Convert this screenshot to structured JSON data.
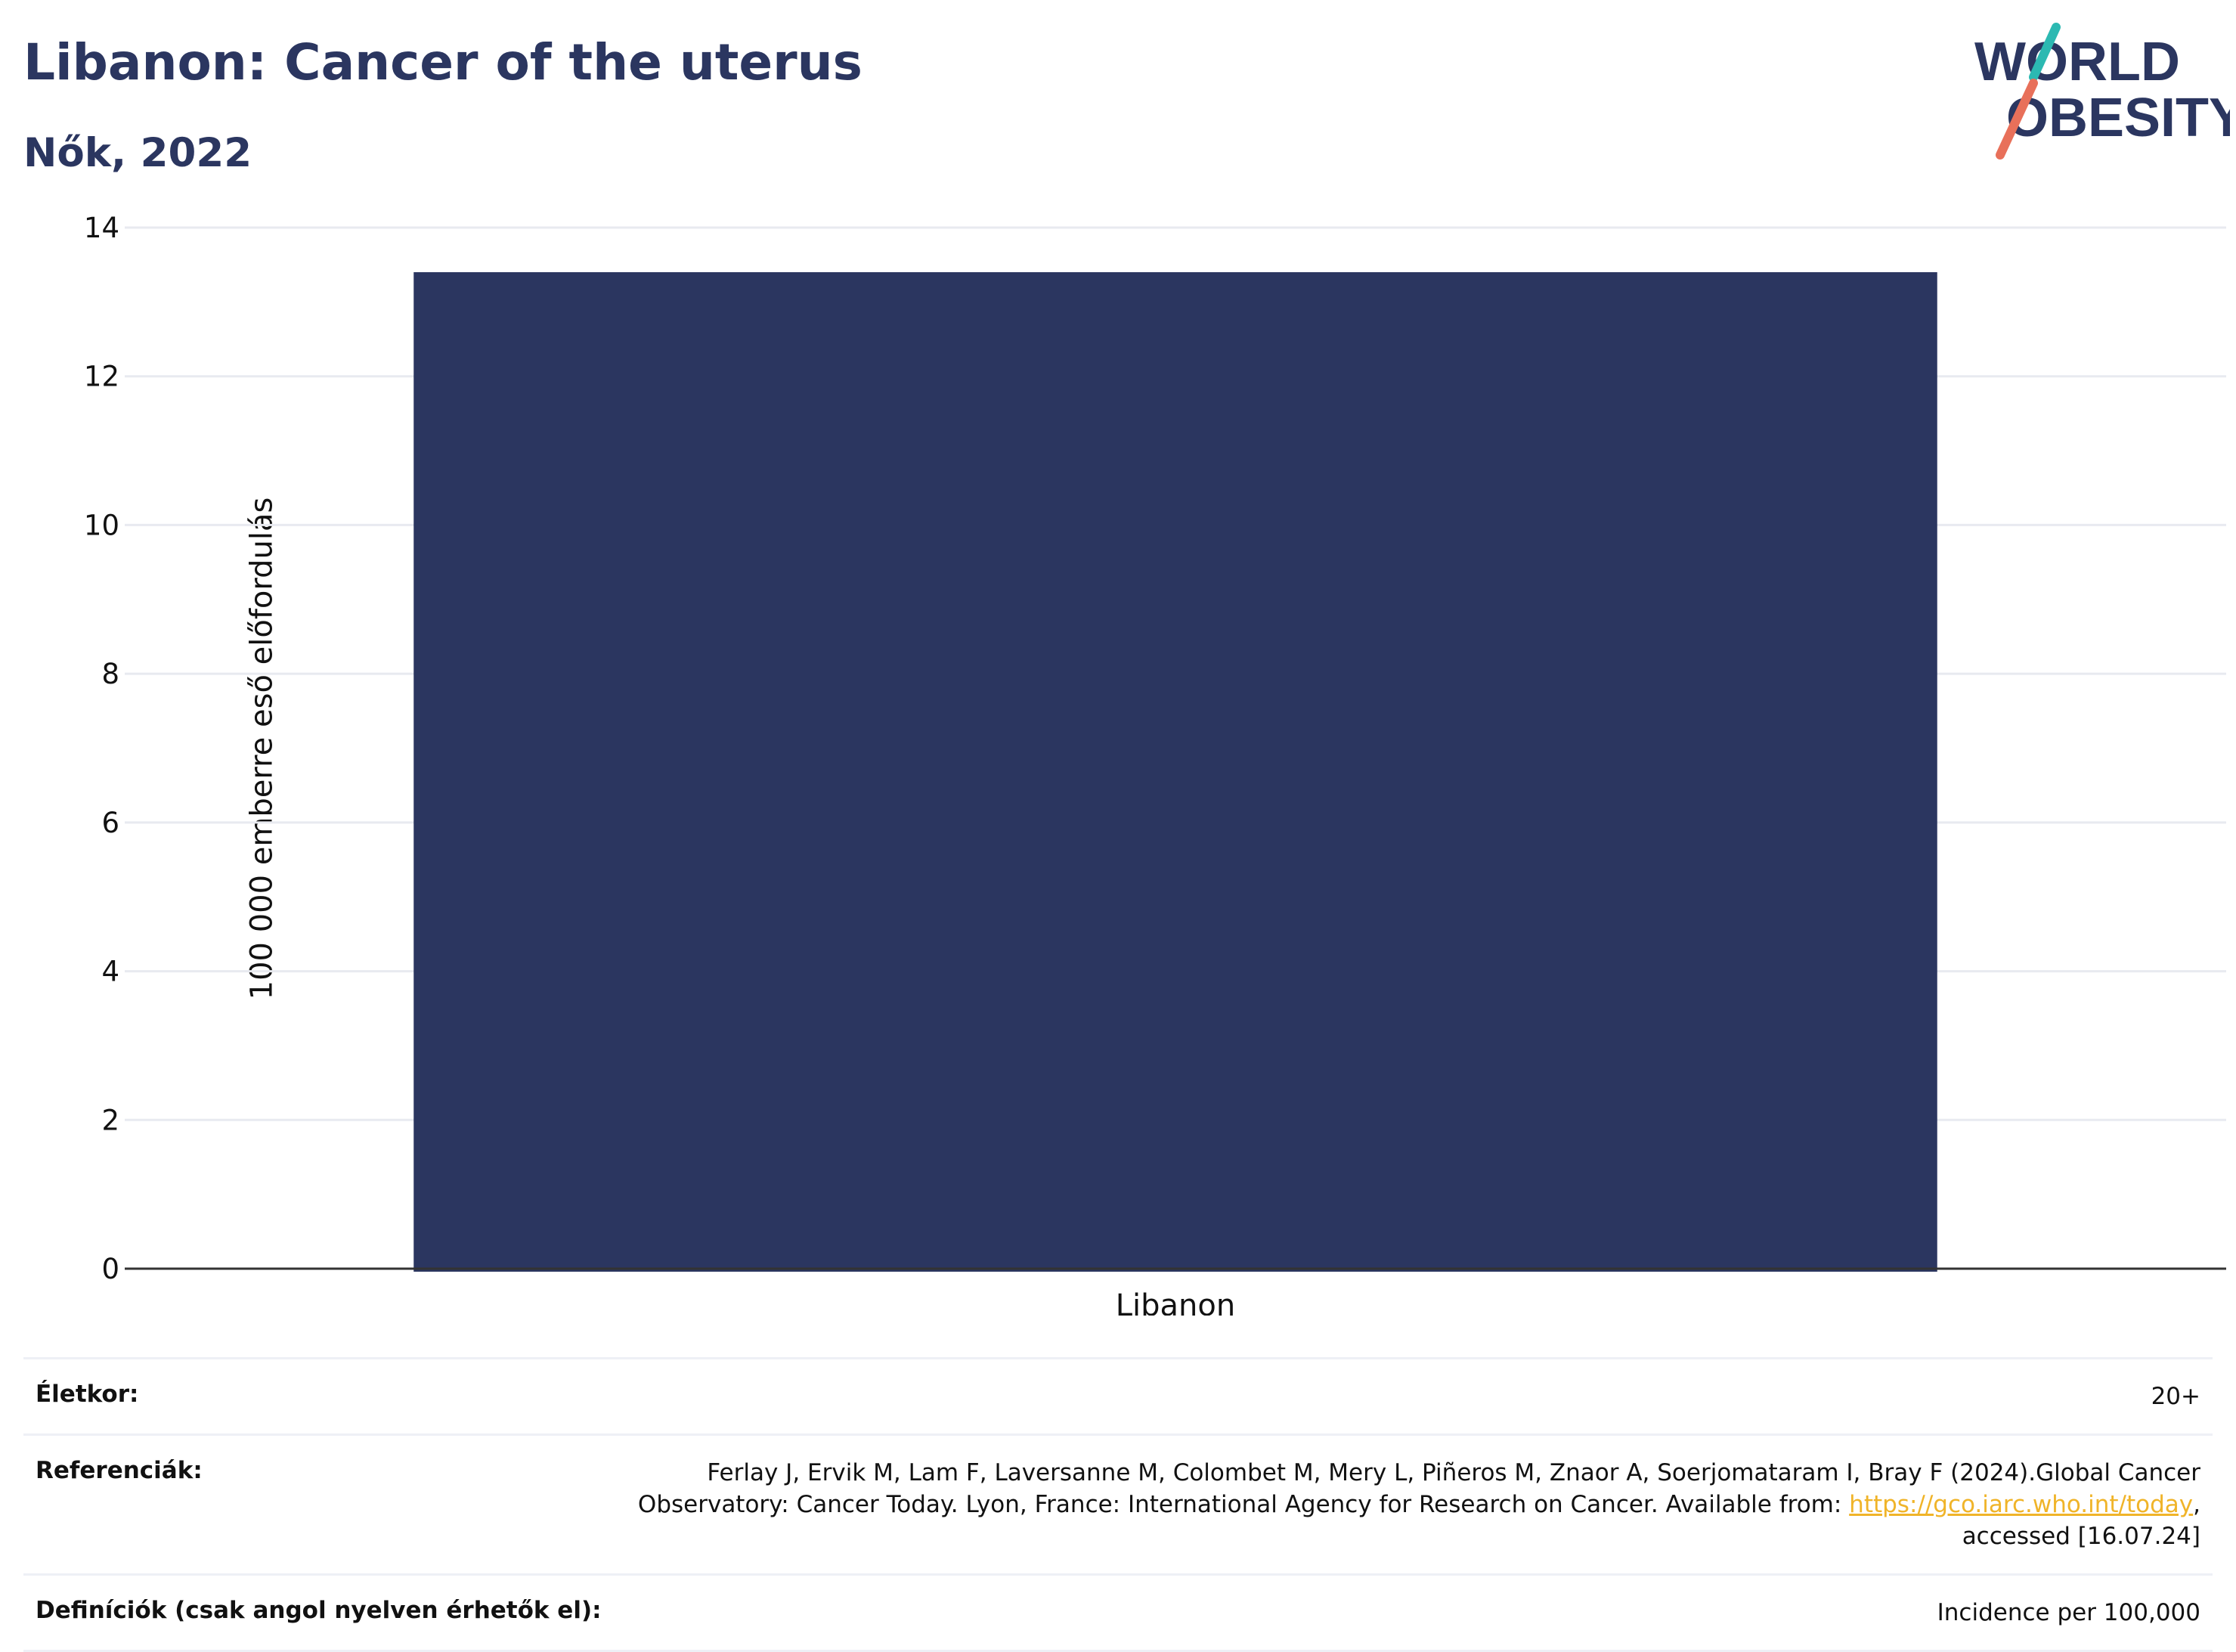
{
  "header": {
    "title": "Libanon: Cancer of the uterus",
    "subtitle": "Nők, 2022",
    "logo_text_1": "WORLD",
    "logo_text_2": "OBESITY"
  },
  "colors": {
    "bar": "#2b3660",
    "title": "#2b3660",
    "logo_teal": "#2cb9b2",
    "logo_coral": "#e8705a",
    "link": "#f0b429"
  },
  "chart_data": {
    "type": "bar",
    "categories": [
      "Libanon"
    ],
    "values": [
      13.4
    ],
    "ylabel": "100 000 emberre eső előfordulás",
    "xlabel": "",
    "ylim": [
      0,
      14
    ],
    "yticks": [
      0,
      2,
      4,
      6,
      8,
      10,
      12,
      14
    ],
    "grid": true
  },
  "meta": {
    "age_label": "Életkor:",
    "age_value": "20+",
    "ref_label": "Referenciák:",
    "ref_text_1": "Ferlay J, Ervik M, Lam F, Laversanne M, Colombet M, Mery L, Piñeros M, Znaor A, Soerjomataram I, Bray F (2024).Global Cancer",
    "ref_text_2": "Observatory: Cancer Today. Lyon, France: International Agency for Research on Cancer. Available from: ",
    "ref_link": "https://gco.iarc.who.int/today",
    "ref_text_3": ",",
    "ref_text_4": "accessed [16.07.24]",
    "def_label": "Definíciók (csak angol nyelven érhetők el):",
    "def_value": "Incidence per 100,000"
  }
}
